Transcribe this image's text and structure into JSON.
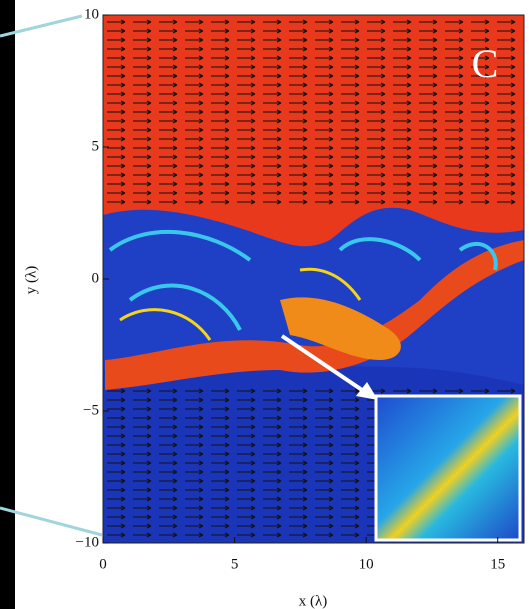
{
  "chart_data": {
    "type": "field",
    "panel_label": "C",
    "x_label": "x (λ)",
    "y_label": "y (λ)",
    "xlim": [
      0,
      16
    ],
    "xticks": [
      0,
      5,
      10,
      15
    ],
    "ylim": [
      -10,
      10
    ],
    "yticks": [
      {
        "value": -10,
        "label": "−10"
      },
      {
        "value": -5,
        "label": "−5"
      },
      0,
      5,
      10
    ],
    "grid": false
  }
}
